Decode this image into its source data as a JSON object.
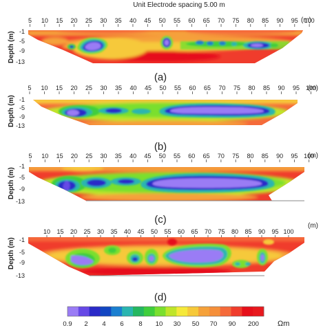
{
  "title": "Unit Electrode spacing 5.00 m",
  "axis": {
    "y_label": "Depth (m)",
    "x_unit": "(m)",
    "depth_ticks": [
      "-1",
      "-5",
      "-9",
      "-13"
    ]
  },
  "panels": [
    {
      "label": "(a)",
      "x_ticks": [
        "5",
        "10",
        "15",
        "20",
        "25",
        "30",
        "35",
        "40",
        "45",
        "50",
        "55",
        "60",
        "65",
        "70",
        "75",
        "80",
        "85",
        "90",
        "95",
        "100"
      ]
    },
    {
      "label": "(b)",
      "x_ticks": [
        "5",
        "10",
        "15",
        "20",
        "25",
        "30",
        "35",
        "40",
        "45",
        "50",
        "55",
        "60",
        "65",
        "70",
        "75",
        "80",
        "85",
        "90",
        "95",
        "100"
      ]
    },
    {
      "label": "(c)",
      "x_ticks": [
        "5",
        "10",
        "15",
        "20",
        "25",
        "30",
        "35",
        "40",
        "45",
        "50",
        "55",
        "60",
        "65",
        "70",
        "75",
        "80",
        "85",
        "90",
        "95",
        "100"
      ]
    },
    {
      "label": "(d)",
      "x_ticks": [
        "10",
        "15",
        "20",
        "25",
        "30",
        "35",
        "40",
        "45",
        "50",
        "55",
        "60",
        "65",
        "70",
        "75",
        "80",
        "85",
        "90",
        "95",
        "100"
      ]
    }
  ],
  "colorbar": {
    "unit": "Ωm",
    "labels": [
      "0.9",
      "2",
      "4",
      "6",
      "8",
      "10",
      "30",
      "50",
      "70",
      "90",
      "200"
    ],
    "colors": [
      "#9a7cf5",
      "#6648e6",
      "#2a2ac8",
      "#1246c2",
      "#1a7fd0",
      "#2ab5b0",
      "#25b760",
      "#3fce3c",
      "#7adf2e",
      "#bfe52a",
      "#f5e93a",
      "#f6c93a",
      "#f5a13a",
      "#f58f3a",
      "#f56a3a",
      "#f03c2c",
      "#e60f1a",
      "#e8191e"
    ]
  },
  "colors": {
    "frame": "#888888",
    "text": "#222222"
  }
}
